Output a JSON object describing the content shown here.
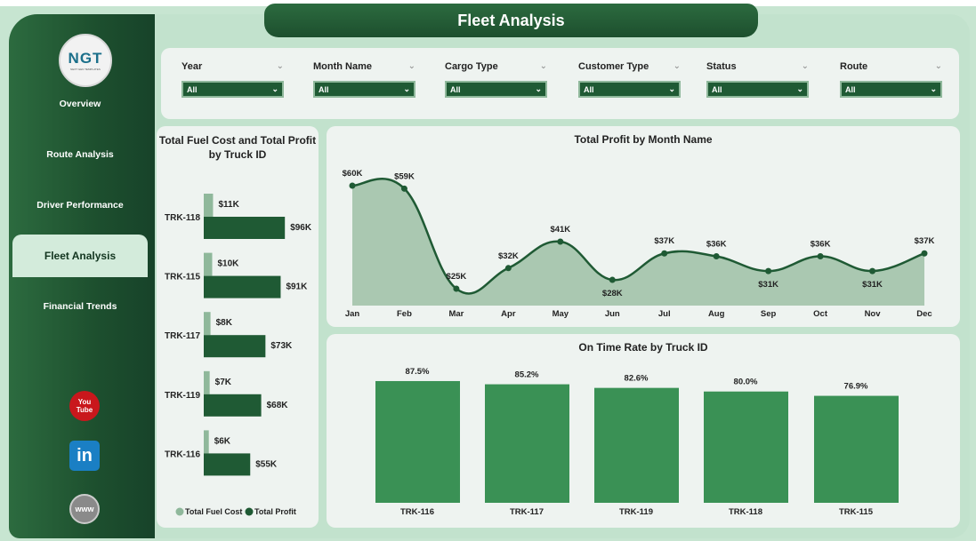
{
  "title": "Fleet Analysis",
  "logo": {
    "text": "NGT",
    "subtext": "NEXT GEN TEMPLATES"
  },
  "nav": [
    {
      "label": "Overview"
    },
    {
      "label": "Route Analysis"
    },
    {
      "label": "Driver Performance"
    },
    {
      "label": "Fleet Analysis",
      "active": true
    },
    {
      "label": "Financial Trends"
    }
  ],
  "social": [
    {
      "icon": "youtube-icon",
      "label": "You Tube"
    },
    {
      "icon": "linkedin-icon",
      "label": "in"
    },
    {
      "icon": "globe-www-icon",
      "label": "www"
    }
  ],
  "filters": [
    {
      "label": "Year",
      "value": "All"
    },
    {
      "label": "Month Name",
      "value": "All"
    },
    {
      "label": "Cargo Type",
      "value": "All"
    },
    {
      "label": "Customer Type",
      "value": "All"
    },
    {
      "label": "Status",
      "value": "All"
    },
    {
      "label": "Route",
      "value": "All"
    }
  ],
  "colors": {
    "dark": "#1f5a34",
    "light": "#8fb89b",
    "bar": "#3a9155",
    "area": "#9dbfa6"
  },
  "chart_data": [
    {
      "type": "bar",
      "orientation": "horizontal",
      "title": "Total Fuel Cost and Total Profit by Truck ID",
      "categories": [
        "TRK-118",
        "TRK-115",
        "TRK-117",
        "TRK-119",
        "TRK-116"
      ],
      "series": [
        {
          "name": "Total Fuel Cost",
          "values": [
            11,
            10,
            8,
            7,
            6
          ],
          "labels": [
            "$11K",
            "$10K",
            "$8K",
            "$7K",
            "$6K"
          ]
        },
        {
          "name": "Total Profit",
          "values": [
            96,
            91,
            73,
            68,
            55
          ],
          "labels": [
            "$96K",
            "$91K",
            "$73K",
            "$68K",
            "$55K"
          ]
        }
      ],
      "unit": "$K",
      "legend": "bottom"
    },
    {
      "type": "area",
      "title": "Total Profit by Month Name",
      "categories": [
        "Jan",
        "Feb",
        "Mar",
        "Apr",
        "May",
        "Jun",
        "Jul",
        "Aug",
        "Sep",
        "Oct",
        "Nov",
        "Dec"
      ],
      "values": [
        60,
        59,
        25,
        32,
        41,
        28,
        37,
        36,
        31,
        36,
        31,
        37
      ],
      "labels": [
        "$60K",
        "$59K",
        "$25K",
        "$32K",
        "$41K",
        "$28K",
        "$37K",
        "$36K",
        "$31K",
        "$36K",
        "$31K",
        "$37K"
      ],
      "unit": "$K"
    },
    {
      "type": "bar",
      "title": "On Time Rate by Truck ID",
      "categories": [
        "TRK-116",
        "TRK-117",
        "TRK-119",
        "TRK-118",
        "TRK-115"
      ],
      "values": [
        87.5,
        85.2,
        82.6,
        80.0,
        76.9
      ],
      "labels": [
        "87.5%",
        "85.2%",
        "82.6%",
        "80.0%",
        "76.9%"
      ],
      "unit": "%"
    }
  ]
}
